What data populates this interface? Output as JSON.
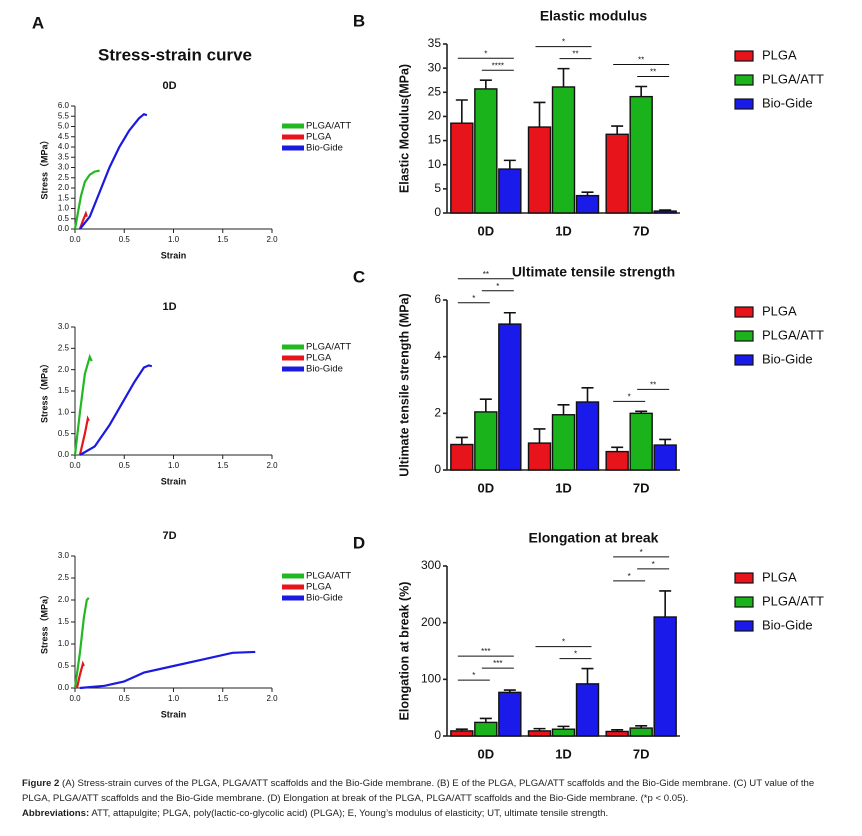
{
  "chart_data": [
    {
      "type": "line",
      "panel": "A",
      "group_title": "Stress-strain curve",
      "title": "0D",
      "xlabel": "Strain",
      "ylabel": "Stress（MPa）",
      "legend": "right",
      "xlim": [
        0,
        2
      ],
      "xticks": [
        {
          "value": 0,
          "label": "0.0"
        },
        0.5,
        {
          "value": 1,
          "label": "1.0"
        },
        1.5,
        {
          "value": 2,
          "label": "2.0"
        }
      ],
      "ylim": [
        0,
        6
      ],
      "yticks": [
        {
          "value": 0,
          "label": "0.0"
        },
        0.5,
        {
          "value": 1,
          "label": "1.0"
        },
        1.5,
        {
          "value": 2,
          "label": "2.0"
        },
        2.5,
        {
          "value": 3,
          "label": "3.0"
        },
        3.5,
        {
          "value": 4,
          "label": "4.0"
        },
        4.5,
        {
          "value": 5,
          "label": "5.0"
        },
        5.5,
        {
          "value": 6,
          "label": "6.0"
        }
      ],
      "series": [
        {
          "name": "PLGA/ATT",
          "color": "#22b822",
          "x": [
            0,
            0.03,
            0.06,
            0.1,
            0.15,
            0.2,
            0.25
          ],
          "values": [
            0,
            0.8,
            1.6,
            2.3,
            2.65,
            2.8,
            2.85
          ]
        },
        {
          "name": "PLGA",
          "color": "#e8141c",
          "x": [
            0.05,
            0.08,
            0.11,
            0.12
          ],
          "values": [
            0,
            0.4,
            0.75,
            0.6
          ]
        },
        {
          "name": "Bio-Gide",
          "color": "#1a1ae0",
          "x": [
            0.05,
            0.15,
            0.25,
            0.35,
            0.45,
            0.55,
            0.65,
            0.7,
            0.73
          ],
          "values": [
            0,
            0.6,
            1.8,
            3.0,
            4.0,
            4.8,
            5.4,
            5.6,
            5.55
          ]
        }
      ]
    },
    {
      "type": "line",
      "title": "1D",
      "xlabel": "Strain",
      "ylabel": "Stress（MPa）",
      "legend": "right",
      "xlim": [
        0,
        2
      ],
      "xticks": [
        {
          "value": 0,
          "label": "0.0"
        },
        0.5,
        {
          "value": 1,
          "label": "1.0"
        },
        1.5,
        {
          "value": 2,
          "label": "2.0"
        }
      ],
      "ylim": [
        0,
        3
      ],
      "yticks": [
        {
          "value": 0,
          "label": "0.0"
        },
        0.5,
        {
          "value": 1,
          "label": "1.0"
        },
        1.5,
        {
          "value": 2,
          "label": "2.0"
        },
        2.5,
        {
          "value": 3,
          "label": "3.0"
        }
      ],
      "series": [
        {
          "name": "PLGA/ATT",
          "color": "#22b822",
          "x": [
            0,
            0.05,
            0.1,
            0.15,
            0.17
          ],
          "values": [
            0,
            1.0,
            1.9,
            2.3,
            2.2
          ]
        },
        {
          "name": "PLGA",
          "color": "#e8141c",
          "x": [
            0.05,
            0.1,
            0.13,
            0.14
          ],
          "values": [
            0,
            0.5,
            0.85,
            0.8
          ]
        },
        {
          "name": "Bio-Gide",
          "color": "#1a1ae0",
          "x": [
            0.05,
            0.2,
            0.35,
            0.5,
            0.6,
            0.7,
            0.75,
            0.78
          ],
          "values": [
            0,
            0.2,
            0.7,
            1.3,
            1.7,
            2.05,
            2.1,
            2.08
          ]
        }
      ]
    },
    {
      "type": "line",
      "title": "7D",
      "xlabel": "Strain",
      "ylabel": "Stress（MPa）",
      "legend": "right",
      "xlim": [
        0,
        2
      ],
      "xticks": [
        {
          "value": 0,
          "label": "0.0"
        },
        0.5,
        {
          "value": 1,
          "label": "1.0"
        },
        1.5,
        {
          "value": 2,
          "label": "2.0"
        }
      ],
      "ylim": [
        0,
        3
      ],
      "yticks": [
        {
          "value": 0,
          "label": "0.0"
        },
        0.5,
        {
          "value": 1,
          "label": "1.0"
        },
        1.5,
        {
          "value": 2,
          "label": "2.0"
        },
        2.5,
        {
          "value": 3,
          "label": "3.0"
        }
      ],
      "series": [
        {
          "name": "PLGA/ATT",
          "color": "#22b822",
          "x": [
            0,
            0.05,
            0.09,
            0.12,
            0.14
          ],
          "values": [
            0,
            0.8,
            1.6,
            2.0,
            2.05
          ]
        },
        {
          "name": "PLGA",
          "color": "#e8141c",
          "x": [
            0.02,
            0.05,
            0.08,
            0.09
          ],
          "values": [
            0,
            0.3,
            0.55,
            0.5
          ]
        },
        {
          "name": "Bio-Gide",
          "color": "#1a1ae0",
          "x": [
            0.05,
            0.3,
            0.5,
            0.7,
            1.0,
            1.3,
            1.6,
            1.83
          ],
          "values": [
            0,
            0.05,
            0.15,
            0.35,
            0.5,
            0.65,
            0.8,
            0.82
          ]
        }
      ]
    },
    {
      "type": "bar",
      "panel": "B",
      "title": "Elastic modulus",
      "ylabel": "Elastic Modulus(MPa)",
      "legend": "right",
      "categories": [
        "0D",
        "1D",
        "7D"
      ],
      "ylim": [
        0,
        35
      ],
      "yticks": [
        0,
        5,
        10,
        15,
        20,
        25,
        30,
        35
      ],
      "series": [
        {
          "name": "PLGA",
          "color": "#e8141c",
          "values": [
            18.6,
            17.8,
            16.3
          ],
          "errors": [
            4.8,
            5.1,
            1.7
          ]
        },
        {
          "name": "PLGA/ATT",
          "color": "#1bb31b",
          "values": [
            25.7,
            26.1,
            24.1
          ],
          "errors": [
            1.8,
            3.8,
            2.1
          ]
        },
        {
          "name": "Bio-Gide",
          "color": "#1a1aeb",
          "values": [
            9.1,
            3.6,
            0.4
          ],
          "errors": [
            1.8,
            0.7,
            0.2
          ]
        }
      ],
      "significance": [
        [
          {
            "pair": [
              1,
              2
            ],
            "label": "****"
          },
          {
            "pair": [
              0,
              2
            ],
            "label": "*"
          }
        ],
        [
          {
            "pair": [
              1,
              2
            ],
            "label": "**"
          },
          {
            "pair": [
              0,
              2
            ],
            "label": "*"
          }
        ],
        [
          {
            "pair": [
              1,
              2
            ],
            "label": "**"
          },
          {
            "pair": [
              0,
              2
            ],
            "label": "**"
          }
        ]
      ]
    },
    {
      "type": "bar",
      "panel": "C",
      "title": "Ultimate tensile strength",
      "ylabel": "Ultimate tensile strength  (MPa)",
      "legend": "right",
      "categories": [
        "0D",
        "1D",
        "7D"
      ],
      "ylim": [
        0,
        6
      ],
      "yticks": [
        0,
        2,
        4,
        6
      ],
      "series": [
        {
          "name": "PLGA",
          "color": "#e8141c",
          "values": [
            0.9,
            0.95,
            0.65
          ],
          "errors": [
            0.25,
            0.5,
            0.15
          ]
        },
        {
          "name": "PLGA/ATT",
          "color": "#1bb31b",
          "values": [
            2.05,
            1.95,
            2.0
          ],
          "errors": [
            0.45,
            0.35,
            0.07
          ]
        },
        {
          "name": "Bio-Gide",
          "color": "#1a1aeb",
          "values": [
            5.15,
            2.4,
            0.88
          ],
          "errors": [
            0.4,
            0.5,
            0.2
          ]
        }
      ],
      "significance": [
        [
          {
            "pair": [
              0,
              1
            ],
            "label": "*"
          },
          {
            "pair": [
              1,
              2
            ],
            "label": "*"
          },
          {
            "pair": [
              0,
              2
            ],
            "label": "**"
          }
        ],
        [],
        [
          {
            "pair": [
              0,
              1
            ],
            "label": "*"
          },
          {
            "pair": [
              1,
              2
            ],
            "label": "**"
          }
        ]
      ]
    },
    {
      "type": "bar",
      "panel": "D",
      "title": "Elongation at break",
      "ylabel": "Elongation at break  (%)",
      "legend": "right",
      "categories": [
        "0D",
        "1D",
        "7D"
      ],
      "ylim": [
        0,
        300
      ],
      "yticks": [
        0,
        100,
        200,
        300
      ],
      "series": [
        {
          "name": "PLGA",
          "color": "#e8141c",
          "values": [
            9,
            9,
            8
          ],
          "errors": [
            3,
            4,
            3
          ]
        },
        {
          "name": "PLGA/ATT",
          "color": "#1bb31b",
          "values": [
            24,
            12,
            14
          ],
          "errors": [
            7,
            5,
            4
          ]
        },
        {
          "name": "Bio-Gide",
          "color": "#1a1aeb",
          "values": [
            77,
            92,
            210
          ],
          "errors": [
            4,
            27,
            46
          ]
        }
      ],
      "significance": [
        [
          {
            "pair": [
              0,
              1
            ],
            "label": "*"
          },
          {
            "pair": [
              1,
              2
            ],
            "label": "***"
          },
          {
            "pair": [
              0,
              2
            ],
            "label": "***"
          }
        ],
        [
          {
            "pair": [
              1,
              2
            ],
            "label": "*"
          },
          {
            "pair": [
              0,
              2
            ],
            "label": "*"
          }
        ],
        [
          {
            "pair": [
              0,
              1
            ],
            "label": "*"
          },
          {
            "pair": [
              1,
              2
            ],
            "label": "*"
          },
          {
            "pair": [
              0,
              2
            ],
            "label": "*"
          }
        ]
      ]
    }
  ],
  "caption": {
    "label": "Figure 2",
    "text": "(A) Stress-strain curves of the PLGA, PLGA/ATT scaffolds and the Bio-Gide membrane. (B) E of the PLGA, PLGA/ATT scaffolds and the Bio-Gide membrane. (C) UT value of the PLGA, PLGA/ATT scaffolds and the Bio-Gide membrane. (D) Elongation at break of the PLGA, PLGA/ATT scaffolds and the Bio-Gide membrane. (*p < 0.05).",
    "abbreviations_label": "Abbreviations:",
    "abbreviations": "ATT, attapulgite; PLGA, poly(lactic-co-glycolic acid) (PLGA); E, Young’s modulus of elasticity; UT, ultimate tensile strength."
  }
}
